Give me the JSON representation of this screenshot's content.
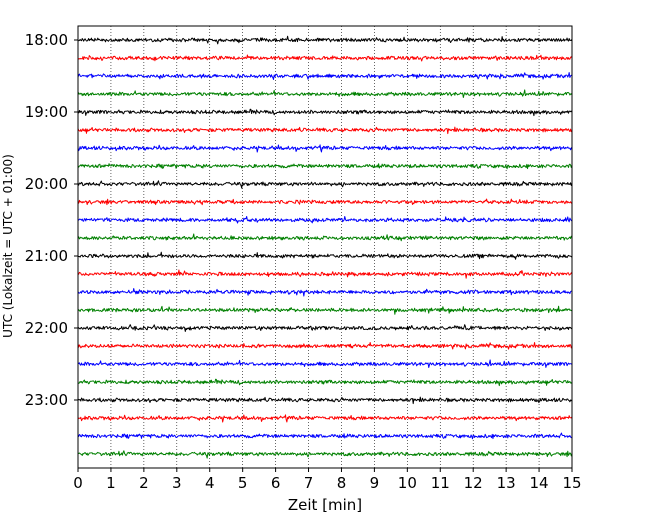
{
  "chart_data": {
    "type": "line",
    "title": "",
    "xlabel": "Zeit  [min]",
    "ylabel": "UTC (Lokalzeit = UTC + 01:00)",
    "xlim": [
      0,
      15
    ],
    "x_ticks": [
      0,
      1,
      2,
      3,
      4,
      5,
      6,
      7,
      8,
      9,
      10,
      11,
      12,
      13,
      14,
      15
    ],
    "x_tick_labels": [
      "0",
      "1",
      "2",
      "3",
      "4",
      "5",
      "6",
      "7",
      "8",
      "9",
      "10",
      "11",
      "12",
      "13",
      "14",
      "15"
    ],
    "y_tick_labels": [
      "18:00",
      "19:00",
      "20:00",
      "21:00",
      "22:00",
      "23:00"
    ],
    "trace_start_times": [
      "18:00",
      "18:15",
      "18:30",
      "18:45",
      "19:00",
      "19:15",
      "19:30",
      "19:45",
      "20:00",
      "20:15",
      "20:30",
      "20:45",
      "21:00",
      "21:15",
      "21:30",
      "21:45",
      "22:00",
      "22:15",
      "22:30",
      "22:45",
      "23:00",
      "23:15",
      "23:30",
      "23:45"
    ],
    "trace_colors": [
      "#000000",
      "#ff0000",
      "#0000ff",
      "#008000"
    ],
    "grid_x": true,
    "grid_style": "dotted",
    "legend": false
  }
}
